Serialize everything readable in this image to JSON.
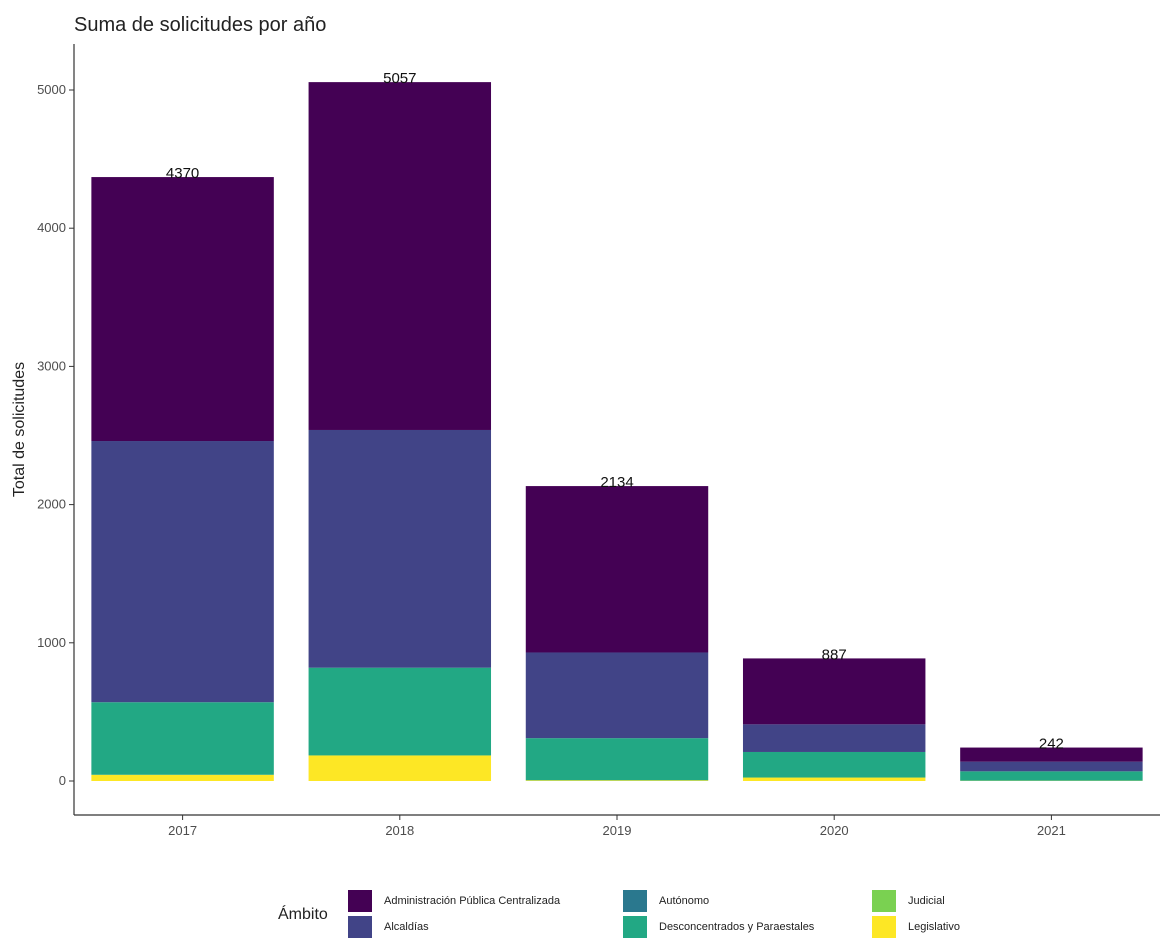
{
  "title": "Suma de solicitudes por año",
  "chart_data": {
    "type": "bar",
    "stacked": true,
    "title": "Suma de solicitudes por año",
    "xlabel": "",
    "ylabel": "Total de solicitudes",
    "ylim": [
      0,
      5300
    ],
    "yticks": [
      0,
      1000,
      2000,
      3000,
      4000,
      5000
    ],
    "grid": false,
    "legend_position": "bottom",
    "legend_title": "Ámbito",
    "categories": [
      "2017",
      "2018",
      "2019",
      "2020",
      "2021"
    ],
    "totals": [
      4370,
      5057,
      2134,
      887,
      242
    ],
    "series": [
      {
        "name": "Legislativo",
        "color": "#FDE725",
        "values": [
          45,
          185,
          5,
          25,
          2
        ]
      },
      {
        "name": "Judicial",
        "color": "#7AD151",
        "values": [
          0,
          0,
          0,
          0,
          0
        ]
      },
      {
        "name": "Desconcentrados y Paraestales",
        "color": "#22A884",
        "values": [
          525,
          635,
          305,
          185,
          68
        ]
      },
      {
        "name": "Autónomo",
        "color": "#2A788E",
        "values": [
          0,
          0,
          0,
          0,
          0
        ]
      },
      {
        "name": "Alcaldías",
        "color": "#414487",
        "values": [
          1890,
          1720,
          620,
          200,
          70
        ]
      },
      {
        "name": "Administración Pública Centralizada",
        "color": "#440154",
        "values": [
          1910,
          2517,
          1204,
          477,
          102
        ]
      }
    ]
  },
  "legend": {
    "title": "Ámbito",
    "items": [
      {
        "label": "Administración Pública Centralizada",
        "color": "#440154"
      },
      {
        "label": "Alcaldías",
        "color": "#414487"
      },
      {
        "label": "Autónomo",
        "color": "#2A788E"
      },
      {
        "label": "Desconcentrados y Paraestales",
        "color": "#22A884"
      },
      {
        "label": "Judicial",
        "color": "#7AD151"
      },
      {
        "label": "Legislativo",
        "color": "#FDE725"
      }
    ]
  }
}
